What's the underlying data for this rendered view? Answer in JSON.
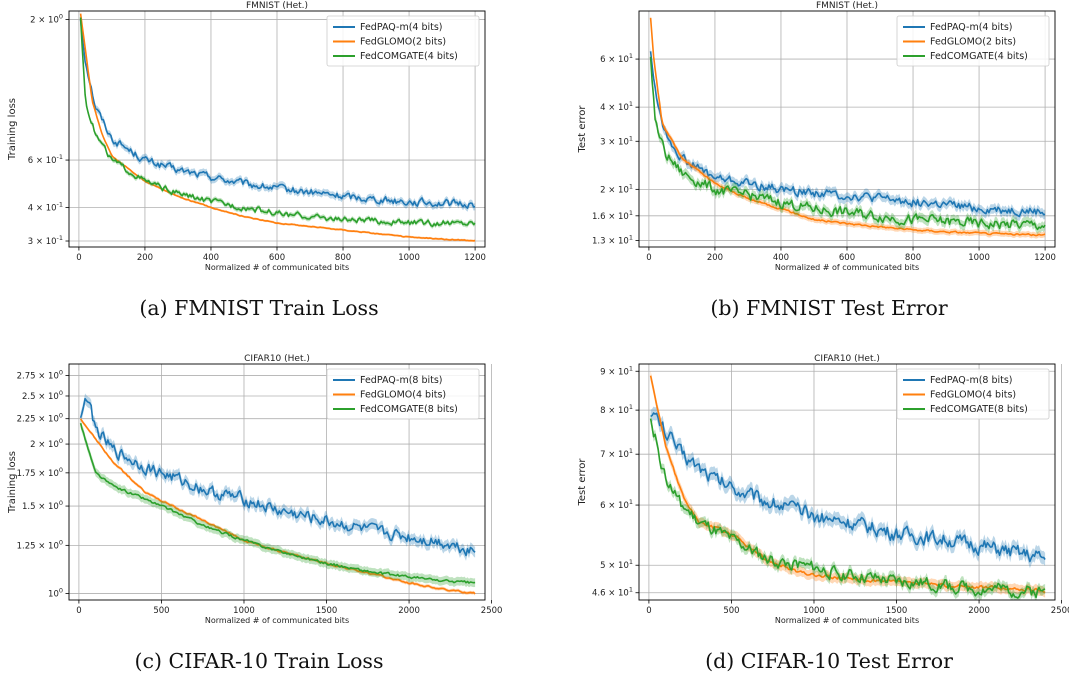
{
  "colors": {
    "blue": "#1f77b4",
    "orange": "#ff7f0e",
    "green": "#2ca02c",
    "grid": "#b0b0b0"
  },
  "captions": [
    "(a) FMNIST Train Loss",
    "(b) FMNIST Test Error",
    "(c) CIFAR-10 Train Loss",
    "(d) CIFAR-10 Test Error"
  ],
  "chart_data": [
    {
      "type": "line",
      "title": "FMNIST (Het.)",
      "xlabel": "Normalized # of communicated bits",
      "ylabel": "Training loss",
      "xlim": [
        -30,
        1230
      ],
      "ylim": [
        0.285,
        2.15
      ],
      "yscale": "log",
      "xticks": [
        0,
        200,
        400,
        600,
        800,
        1000,
        1200
      ],
      "xtick_labels": [
        "0",
        "200",
        "400",
        "600",
        "800",
        "1000",
        "1200"
      ],
      "yticks": [
        2.0,
        0.6,
        0.4,
        0.3
      ],
      "ytick_labels": [
        "2 × 10^0",
        "6 × 10^-1",
        "4 × 10^-1",
        "3 × 10^-1"
      ],
      "grid": true,
      "legend_position": "top-right",
      "series": [
        {
          "name": "FedPAQ-m(4 bits)",
          "color": "#1f77b4",
          "noise": 0.05,
          "band": 0.03,
          "points": [
            [
              5,
              2.0
            ],
            [
              20,
              1.4
            ],
            [
              50,
              0.95
            ],
            [
              100,
              0.72
            ],
            [
              200,
              0.6
            ],
            [
              300,
              0.55
            ],
            [
              400,
              0.52
            ],
            [
              500,
              0.49
            ],
            [
              600,
              0.47
            ],
            [
              800,
              0.44
            ],
            [
              1000,
              0.42
            ],
            [
              1200,
              0.41
            ]
          ]
        },
        {
          "name": "FedGLOMO(2 bits)",
          "color": "#ff7f0e",
          "noise": 0.006,
          "band": 0.01,
          "points": [
            [
              5,
              2.1
            ],
            [
              15,
              1.7
            ],
            [
              40,
              1.0
            ],
            [
              70,
              0.75
            ],
            [
              100,
              0.62
            ],
            [
              200,
              0.5
            ],
            [
              300,
              0.44
            ],
            [
              400,
              0.4
            ],
            [
              500,
              0.37
            ],
            [
              600,
              0.35
            ],
            [
              800,
              0.33
            ],
            [
              1000,
              0.31
            ],
            [
              1200,
              0.3
            ]
          ]
        },
        {
          "name": "FedCOMGATE(4 bits)",
          "color": "#2ca02c",
          "noise": 0.04,
          "band": 0.02,
          "points": [
            [
              5,
              2.0
            ],
            [
              20,
              1.0
            ],
            [
              50,
              0.75
            ],
            [
              100,
              0.6
            ],
            [
              200,
              0.5
            ],
            [
              300,
              0.45
            ],
            [
              400,
              0.42
            ],
            [
              500,
              0.4
            ],
            [
              600,
              0.38
            ],
            [
              800,
              0.36
            ],
            [
              1000,
              0.35
            ],
            [
              1200,
              0.35
            ]
          ]
        }
      ]
    },
    {
      "type": "line",
      "title": "FMNIST (Het.)",
      "xlabel": "Normalized # of communicated bits",
      "ylabel": "Test error",
      "xlim": [
        -30,
        1230
      ],
      "ylim": [
        12.3,
        90
      ],
      "yscale": "log",
      "xticks": [
        0,
        200,
        400,
        600,
        800,
        1000,
        1200
      ],
      "xtick_labels": [
        "0",
        "200",
        "400",
        "600",
        "800",
        "1000",
        "1200"
      ],
      "yticks": [
        60,
        40,
        30,
        20,
        16,
        13
      ],
      "ytick_labels": [
        "6 × 10^1",
        "4 × 10^1",
        "3 × 10^1",
        "2 × 10^1",
        "1.6 × 10^1",
        "1.3 × 10^1"
      ],
      "grid": true,
      "legend_position": "top-right",
      "series": [
        {
          "name": "FedPAQ-m(4 bits)",
          "color": "#1f77b4",
          "noise": 0.06,
          "band": 0.04,
          "points": [
            [
              5,
              65
            ],
            [
              20,
              45
            ],
            [
              50,
              32
            ],
            [
              100,
              26
            ],
            [
              200,
              22
            ],
            [
              300,
              21
            ],
            [
              400,
              20
            ],
            [
              500,
              19.5
            ],
            [
              600,
              19
            ],
            [
              800,
              18
            ],
            [
              1000,
              17
            ],
            [
              1200,
              16.5
            ]
          ]
        },
        {
          "name": "FedGLOMO(2 bits)",
          "color": "#ff7f0e",
          "noise": 0.012,
          "band": 0.025,
          "points": [
            [
              5,
              85
            ],
            [
              15,
              60
            ],
            [
              40,
              35
            ],
            [
              100,
              26
            ],
            [
              200,
              21
            ],
            [
              300,
              18.5
            ],
            [
              400,
              17
            ],
            [
              500,
              15.5
            ],
            [
              600,
              15
            ],
            [
              800,
              14.2
            ],
            [
              1000,
              13.8
            ],
            [
              1200,
              13.6
            ]
          ]
        },
        {
          "name": "FedCOMGATE(4 bits)",
          "color": "#2ca02c",
          "noise": 0.07,
          "band": 0.04,
          "points": [
            [
              5,
              60
            ],
            [
              20,
              35
            ],
            [
              50,
              27
            ],
            [
              100,
              23
            ],
            [
              200,
              20
            ],
            [
              300,
              19
            ],
            [
              400,
              18
            ],
            [
              500,
              17
            ],
            [
              600,
              16.5
            ],
            [
              800,
              15.5
            ],
            [
              1000,
              15
            ],
            [
              1200,
              14.8
            ]
          ]
        }
      ]
    },
    {
      "type": "line",
      "title": "CIFAR10 (Het.)",
      "xlabel": "Normalized # of communicated bits",
      "ylabel": "Training loss",
      "xlim": [
        -60,
        2460
      ],
      "ylim": [
        0.97,
        2.9
      ],
      "yscale": "log",
      "xticks": [
        0,
        500,
        1000,
        1500,
        2000,
        2500
      ],
      "xtick_labels": [
        "0",
        "500",
        "1000",
        "1500",
        "2000",
        "2500"
      ],
      "yticks": [
        2.75,
        2.5,
        2.25,
        2.0,
        1.75,
        1.5,
        1.25,
        1.0
      ],
      "ytick_labels": [
        "2.75 × 10^0",
        "2.5 × 10^0",
        "2.25 × 10^0",
        "2 × 10^0",
        "1.75 × 10^0",
        "1.5 × 10^0",
        "1.25 × 10^0",
        "10^0"
      ],
      "grid": true,
      "legend_position": "top-right",
      "series": [
        {
          "name": "FedPAQ-m(8 bits)",
          "color": "#1f77b4",
          "noise": 0.045,
          "band": 0.025,
          "points": [
            [
              10,
              2.3
            ],
            [
              50,
              2.5
            ],
            [
              100,
              2.15
            ],
            [
              200,
              1.95
            ],
            [
              400,
              1.8
            ],
            [
              600,
              1.7
            ],
            [
              800,
              1.6
            ],
            [
              1000,
              1.55
            ],
            [
              1200,
              1.47
            ],
            [
              1500,
              1.4
            ],
            [
              1800,
              1.33
            ],
            [
              2000,
              1.3
            ],
            [
              2200,
              1.27
            ],
            [
              2400,
              1.22
            ]
          ]
        },
        {
          "name": "FedGLOMO(4 bits)",
          "color": "#ff7f0e",
          "noise": 0.006,
          "band": 0.008,
          "points": [
            [
              10,
              2.25
            ],
            [
              100,
              2.05
            ],
            [
              200,
              1.85
            ],
            [
              400,
              1.6
            ],
            [
              600,
              1.48
            ],
            [
              800,
              1.38
            ],
            [
              1000,
              1.28
            ],
            [
              1200,
              1.22
            ],
            [
              1500,
              1.15
            ],
            [
              1800,
              1.09
            ],
            [
              2000,
              1.05
            ],
            [
              2200,
              1.02
            ],
            [
              2400,
              1.0
            ]
          ]
        },
        {
          "name": "FedCOMGATE(8 bits)",
          "color": "#2ca02c",
          "noise": 0.01,
          "band": 0.02,
          "points": [
            [
              10,
              2.2
            ],
            [
              100,
              1.75
            ],
            [
              200,
              1.65
            ],
            [
              400,
              1.55
            ],
            [
              600,
              1.45
            ],
            [
              800,
              1.35
            ],
            [
              1000,
              1.28
            ],
            [
              1200,
              1.22
            ],
            [
              1500,
              1.15
            ],
            [
              1800,
              1.1
            ],
            [
              2000,
              1.08
            ],
            [
              2200,
              1.06
            ],
            [
              2400,
              1.05
            ]
          ]
        }
      ]
    },
    {
      "type": "line",
      "title": "CIFAR10 (Het.)",
      "xlabel": "Normalized # of communicated bits",
      "ylabel": "Test error",
      "xlim": [
        -60,
        2460
      ],
      "ylim": [
        45,
        92
      ],
      "yscale": "log",
      "xticks": [
        0,
        500,
        1000,
        1500,
        2000,
        2500
      ],
      "xtick_labels": [
        "0",
        "500",
        "1000",
        "1500",
        "2000",
        "2500"
      ],
      "yticks": [
        90,
        80,
        70,
        60,
        50,
        46
      ],
      "ytick_labels": [
        "9 × 10^1",
        "8 × 10^1",
        "7 × 10^1",
        "6 × 10^1",
        "5 × 10^1",
        "4.6 × 10^1"
      ],
      "grid": true,
      "legend_position": "top-right",
      "series": [
        {
          "name": "FedPAQ-m(8 bits)",
          "color": "#1f77b4",
          "noise": 0.035,
          "band": 0.02,
          "points": [
            [
              10,
              80
            ],
            [
              100,
              75
            ],
            [
              200,
              70
            ],
            [
              400,
              65
            ],
            [
              600,
              62
            ],
            [
              800,
              60
            ],
            [
              1000,
              58
            ],
            [
              1200,
              57
            ],
            [
              1500,
              55
            ],
            [
              1800,
              54
            ],
            [
              2000,
              53
            ],
            [
              2200,
              52
            ],
            [
              2400,
              51
            ]
          ]
        },
        {
          "name": "FedGLOMO(4 bits)",
          "color": "#ff7f0e",
          "noise": 0.008,
          "band": 0.015,
          "points": [
            [
              10,
              89
            ],
            [
              100,
              72
            ],
            [
              200,
              62
            ],
            [
              300,
              57
            ],
            [
              500,
              55
            ],
            [
              700,
              51
            ],
            [
              900,
              49
            ],
            [
              1000,
              48.5
            ],
            [
              1200,
              48
            ],
            [
              1500,
              47.5
            ],
            [
              1800,
              47
            ],
            [
              2000,
              46.8
            ],
            [
              2200,
              46.5
            ],
            [
              2400,
              46.3
            ]
          ]
        },
        {
          "name": "FedCOMGATE(8 bits)",
          "color": "#2ca02c",
          "noise": 0.03,
          "band": 0.015,
          "points": [
            [
              10,
              78
            ],
            [
              100,
              65
            ],
            [
              200,
              60
            ],
            [
              300,
              57
            ],
            [
              500,
              54
            ],
            [
              700,
              51
            ],
            [
              900,
              50
            ],
            [
              1000,
              49.5
            ],
            [
              1200,
              48.5
            ],
            [
              1500,
              47.5
            ],
            [
              1800,
              47
            ],
            [
              2000,
              46.6
            ],
            [
              2200,
              46.3
            ],
            [
              2400,
              46.2
            ]
          ]
        }
      ]
    }
  ]
}
